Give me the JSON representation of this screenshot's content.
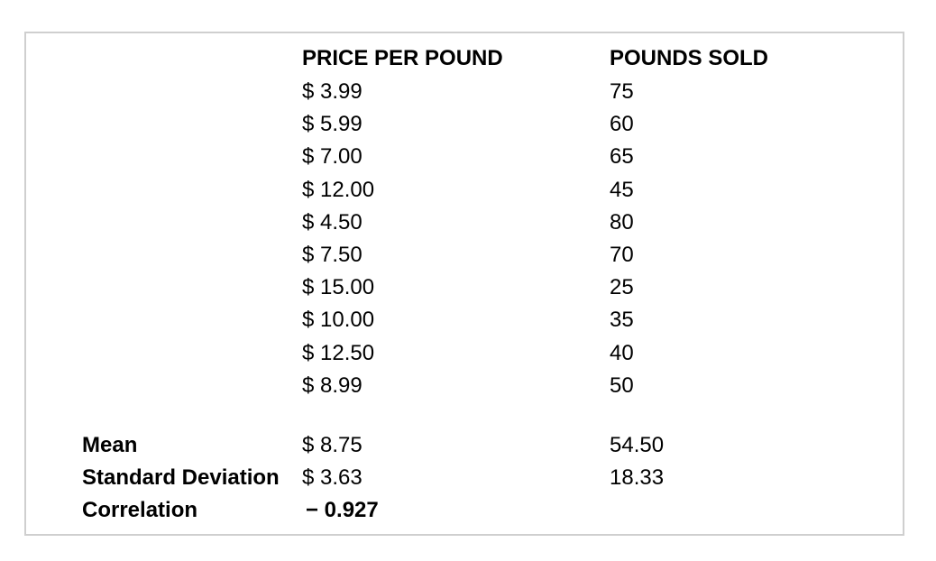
{
  "table": {
    "headers": {
      "price": "PRICE PER POUND",
      "sold": "POUNDS SOLD"
    },
    "rows": [
      {
        "price": "$ 3.99",
        "sold": "75"
      },
      {
        "price": "$ 5.99",
        "sold": "60"
      },
      {
        "price": "$ 7.00",
        "sold": "65"
      },
      {
        "price": "$ 12.00",
        "sold": "45"
      },
      {
        "price": "$ 4.50",
        "sold": "80"
      },
      {
        "price": "$ 7.50",
        "sold": "70"
      },
      {
        "price": "$ 15.00",
        "sold": "25"
      },
      {
        "price": "$ 10.00",
        "sold": "35"
      },
      {
        "price": "$ 12.50",
        "sold": "40"
      },
      {
        "price": "$ 8.99",
        "sold": "50"
      }
    ]
  },
  "summary": {
    "mean": {
      "label": "Mean",
      "price": "$ 8.75",
      "sold": "54.50"
    },
    "std": {
      "label": "Standard Deviation",
      "price": "$ 3.63",
      "sold": "18.33"
    },
    "correlation": {
      "label": "Correlation",
      "value": "− 0.927"
    }
  }
}
